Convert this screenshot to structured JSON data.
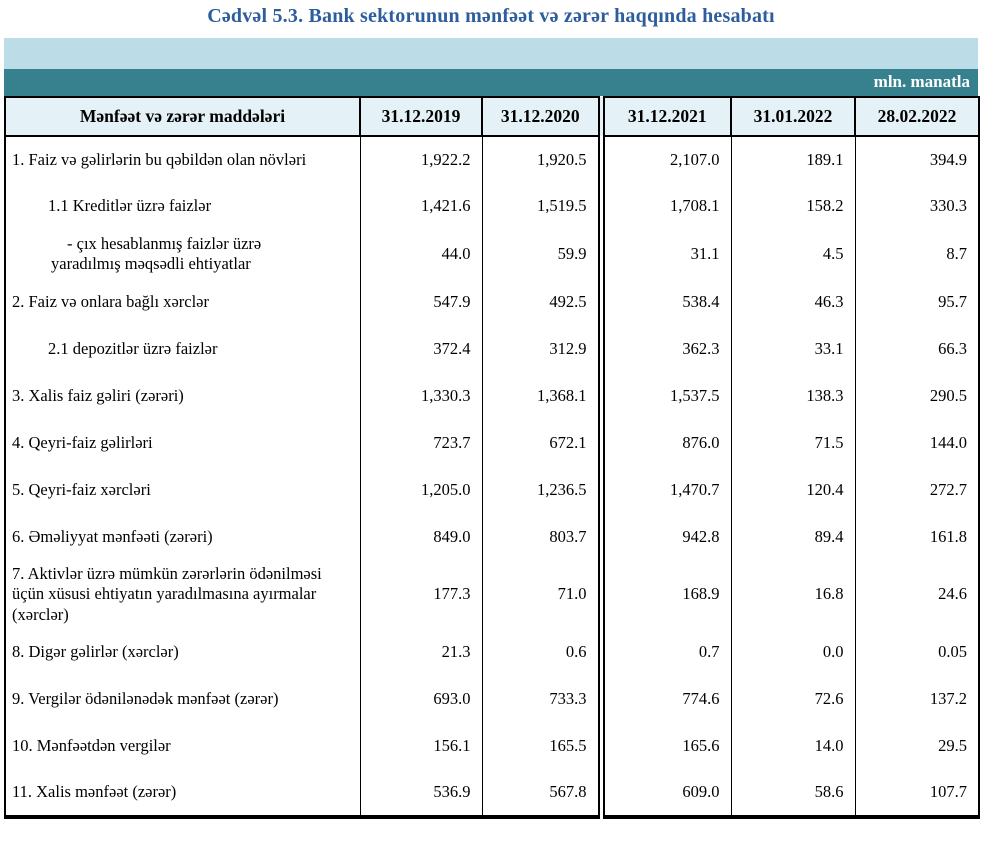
{
  "title": "Cədvəl 5.3. Bank sektorunun mənfəət və zərər haqqında hesabatı",
  "unit_label": "mln. manatla",
  "colors": {
    "title_blue": "#2d5d9c",
    "band_light": "#bcdde8",
    "band_teal": "#37818f",
    "header_bg": "#e4f1f6"
  },
  "table": {
    "columns": [
      "Mənfəət və zərər maddələri",
      "31.12.2019",
      "31.12.2020",
      "31.12.2021",
      "31.01.2022",
      "28.02.2022"
    ],
    "rows": [
      {
        "indent": "main",
        "label": "1. Faiz və gəlirlərin bu qəbildən olan növləri",
        "values": [
          "1,922.2",
          "1,920.5",
          "2,107.0",
          "189.1",
          "394.9"
        ]
      },
      {
        "indent": "sub",
        "label": "1.1 Kreditlər üzrə faizlər",
        "values": [
          "1,421.6",
          "1,519.5",
          "1,708.1",
          "158.2",
          "330.3"
        ]
      },
      {
        "indent": "dash",
        "label": "-  çıx hesablanmış faizlər üzrə yaradılmış məqsədli ehtiyatlar",
        "values": [
          "44.0",
          "59.9",
          "31.1",
          "4.5",
          "8.7"
        ]
      },
      {
        "indent": "main",
        "label": "2. Faiz və onlara bağlı xərclər",
        "values": [
          "547.9",
          "492.5",
          "538.4",
          "46.3",
          "95.7"
        ]
      },
      {
        "indent": "sub",
        "label": "2.1 depozitlər üzrə faizlər",
        "values": [
          "372.4",
          "312.9",
          "362.3",
          "33.1",
          "66.3"
        ]
      },
      {
        "indent": "main",
        "label": "3. Xalis faiz gəliri (zərəri)",
        "values": [
          "1,330.3",
          "1,368.1",
          "1,537.5",
          "138.3",
          "290.5"
        ]
      },
      {
        "indent": "main",
        "label": "4. Qeyri-faiz gəlirləri",
        "values": [
          "723.7",
          "672.1",
          "876.0",
          "71.5",
          "144.0"
        ]
      },
      {
        "indent": "main",
        "label": "5. Qeyri-faiz xərcləri",
        "values": [
          "1,205.0",
          "1,236.5",
          "1,470.7",
          "120.4",
          "272.7"
        ]
      },
      {
        "indent": "main",
        "label": "6. Əməliyyat mənfəəti (zərəri)",
        "values": [
          "849.0",
          "803.7",
          "942.8",
          "89.4",
          "161.8"
        ]
      },
      {
        "indent": "main",
        "label": "7. Aktivlər üzrə mümkün zərərlərin ödənilməsi üçün xüsusi ehtiyatın yaradılmasına ayırmalar (xərclər)",
        "values": [
          "177.3",
          "71.0",
          "168.9",
          "16.8",
          "24.6"
        ]
      },
      {
        "indent": "main",
        "label": "8. Digər gəlirlər (xərclər)",
        "values": [
          "21.3",
          "0.6",
          "0.7",
          "0.0",
          "0.05"
        ]
      },
      {
        "indent": "main",
        "label": "9. Vergilər ödənilənədək mənfəət (zərər)",
        "values": [
          "693.0",
          "733.3",
          "774.6",
          "72.6",
          "137.2"
        ]
      },
      {
        "indent": "main",
        "label": "10. Mənfəətdən vergilər",
        "values": [
          "156.1",
          "165.5",
          "165.6",
          "14.0",
          "29.5"
        ]
      },
      {
        "indent": "main",
        "label": "11. Xalis mənfəət (zərər)",
        "values": [
          "536.9",
          "567.8",
          "609.0",
          "58.6",
          "107.7"
        ]
      }
    ]
  }
}
